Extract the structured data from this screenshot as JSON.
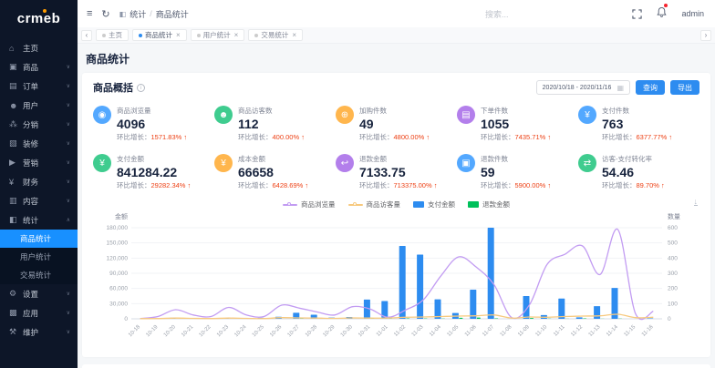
{
  "brand": {
    "name": "crmeb"
  },
  "topbar": {
    "breadcrumb": {
      "section": "统计",
      "page": "商品统计"
    },
    "search_placeholder": "搜索...",
    "username": "admin"
  },
  "tabs": {
    "items": [
      {
        "label": "主页",
        "active": false,
        "closable": false
      },
      {
        "label": "商品统计",
        "active": true,
        "closable": true
      },
      {
        "label": "用户统计",
        "active": false,
        "closable": true
      },
      {
        "label": "交易统计",
        "active": false,
        "closable": true
      }
    ]
  },
  "sidebar": {
    "items": [
      {
        "label": "主页",
        "icon": "⌂",
        "icon_name": "home-icon"
      },
      {
        "label": "商品",
        "icon": "▣",
        "icon_name": "goods-icon",
        "chevron": true
      },
      {
        "label": "订单",
        "icon": "▤",
        "icon_name": "orders-icon",
        "chevron": true
      },
      {
        "label": "用户",
        "icon": "☻",
        "icon_name": "users-icon",
        "chevron": true
      },
      {
        "label": "分销",
        "icon": "⁂",
        "icon_name": "distribution-icon",
        "chevron": true
      },
      {
        "label": "装修",
        "icon": "▧",
        "icon_name": "decoration-icon",
        "chevron": true
      },
      {
        "label": "营销",
        "icon": "▶",
        "icon_name": "marketing-icon",
        "chevron": true
      },
      {
        "label": "财务",
        "icon": "¥",
        "icon_name": "finance-icon",
        "chevron": true
      },
      {
        "label": "内容",
        "icon": "▥",
        "icon_name": "content-icon",
        "chevron": true
      },
      {
        "label": "统计",
        "icon": "◧",
        "icon_name": "statistics-icon",
        "chevron": true,
        "expanded": true,
        "children": [
          {
            "label": "商品统计",
            "active": true
          },
          {
            "label": "用户统计",
            "active": false
          },
          {
            "label": "交易统计",
            "active": false
          }
        ]
      },
      {
        "label": "设置",
        "icon": "⚙",
        "icon_name": "settings-icon",
        "chevron": true
      },
      {
        "label": "应用",
        "icon": "▩",
        "icon_name": "apps-icon",
        "chevron": true
      },
      {
        "label": "维护",
        "icon": "⚒",
        "icon_name": "maintenance-icon",
        "chevron": true
      }
    ]
  },
  "page": {
    "title": "商品统计"
  },
  "overview": {
    "title": "商品概括",
    "date_range": "2020/10/18 - 2020/11/16",
    "query_label": "查询",
    "export_label": "导出",
    "growth_label": "环比增长：",
    "cards": [
      {
        "label": "商品浏览量",
        "value": "4096",
        "growth": "1571.83%",
        "color": "#53a8ff",
        "icon": "◉",
        "icon_name": "views-icon"
      },
      {
        "label": "商品访客数",
        "value": "112",
        "growth": "400.00%",
        "color": "#3fcc8f",
        "icon": "☻",
        "icon_name": "visitors-icon"
      },
      {
        "label": "加购件数",
        "value": "49",
        "growth": "4800.00%",
        "color": "#ffb64d",
        "icon": "⊕",
        "icon_name": "cart-add-icon"
      },
      {
        "label": "下单件数",
        "value": "1055",
        "growth": "7435.71%",
        "color": "#b37feb",
        "icon": "▤",
        "icon_name": "order-count-icon"
      },
      {
        "label": "支付件数",
        "value": "763",
        "growth": "6377.77%",
        "color": "#53a8ff",
        "icon": "¥",
        "icon_name": "paid-count-icon"
      },
      {
        "label": "支付金额",
        "value": "841284.22",
        "growth": "29282.34%",
        "color": "#3fcc8f",
        "icon": "¥",
        "icon_name": "paid-amount-icon"
      },
      {
        "label": "成本金额",
        "value": "66658",
        "growth": "6428.69%",
        "color": "#ffb64d",
        "icon": "¥",
        "icon_name": "cost-amount-icon"
      },
      {
        "label": "退款金额",
        "value": "7133.75",
        "growth": "713375.00%",
        "color": "#b37feb",
        "icon": "↩",
        "icon_name": "refund-amount-icon"
      },
      {
        "label": "退款件数",
        "value": "59",
        "growth": "5900.00%",
        "color": "#53a8ff",
        "icon": "▣",
        "icon_name": "refund-count-icon"
      },
      {
        "label": "访客-支付转化率",
        "value": "54.46",
        "growth": "89.70%",
        "color": "#3fcc8f",
        "icon": "⇄",
        "icon_name": "conversion-icon"
      }
    ]
  },
  "chart_data": {
    "type": "combo",
    "categories": [
      "10-18",
      "10-19",
      "10-20",
      "10-21",
      "10-22",
      "10-23",
      "10-24",
      "10-25",
      "10-26",
      "10-27",
      "10-28",
      "10-29",
      "10-30",
      "10-31",
      "11-01",
      "11-02",
      "11-03",
      "11-04",
      "11-05",
      "11-06",
      "11-07",
      "11-08",
      "11-09",
      "11-10",
      "11-11",
      "11-12",
      "11-13",
      "11-14",
      "11-15",
      "11-16"
    ],
    "series": [
      {
        "name": "商品浏览量",
        "type": "line",
        "axis": "right",
        "color": "#c29cf2",
        "values": [
          2,
          15,
          60,
          25,
          15,
          75,
          25,
          15,
          90,
          70,
          45,
          25,
          80,
          65,
          10,
          58,
          125,
          283,
          408,
          340,
          225,
          8,
          92,
          358,
          425,
          480,
          292,
          588,
          33,
          50
        ]
      },
      {
        "name": "商品访客量",
        "type": "line",
        "axis": "right",
        "color": "#f7c97e",
        "values": [
          1,
          2,
          5,
          3,
          2,
          5,
          3,
          2,
          8,
          6,
          5,
          3,
          6,
          5,
          5,
          10,
          12,
          15,
          18,
          20,
          25,
          5,
          12,
          10,
          15,
          18,
          20,
          30,
          8,
          10
        ]
      },
      {
        "name": "支付金额",
        "type": "bar",
        "axis": "left",
        "color": "#2d8cf0",
        "values": [
          0,
          500,
          2000,
          800,
          500,
          1200,
          600,
          2000,
          4000,
          12000,
          8000,
          2500,
          3500,
          38000,
          35000,
          144000,
          127000,
          38500,
          11500,
          57500,
          180000,
          0,
          45000,
          7500,
          40000,
          3000,
          25000,
          61000,
          0,
          1000
        ]
      },
      {
        "name": "退款金额",
        "type": "bar",
        "axis": "left",
        "color": "#00c05a",
        "values": [
          0,
          0,
          0,
          0,
          0,
          0,
          0,
          0,
          0,
          500,
          0,
          0,
          0,
          500,
          500,
          800,
          600,
          400,
          2000,
          2500,
          900,
          0,
          1500,
          400,
          300,
          800,
          300,
          500,
          0,
          0
        ]
      }
    ],
    "left_axis": {
      "title": "金额",
      "max": 180000,
      "step": 30000
    },
    "right_axis": {
      "title": "数量",
      "max": 600,
      "step": 100
    },
    "grid": true,
    "legend_position": "top-center"
  },
  "ui": {
    "glyphs": {
      "close": "×",
      "chevron_down": "∨",
      "chevron_up": "∧",
      "arrow_left": "‹",
      "arrow_right": "›",
      "separator": "/",
      "up": "↑",
      "info": "i",
      "calendar": "▦",
      "hamburger": "≡",
      "refresh": "↻",
      "breadcrumb_icon": "◧",
      "download": "↓"
    },
    "colors": {
      "accent": "#2d8cf0",
      "danger": "#ed4014",
      "sidebar_active": "#1890ff"
    }
  }
}
